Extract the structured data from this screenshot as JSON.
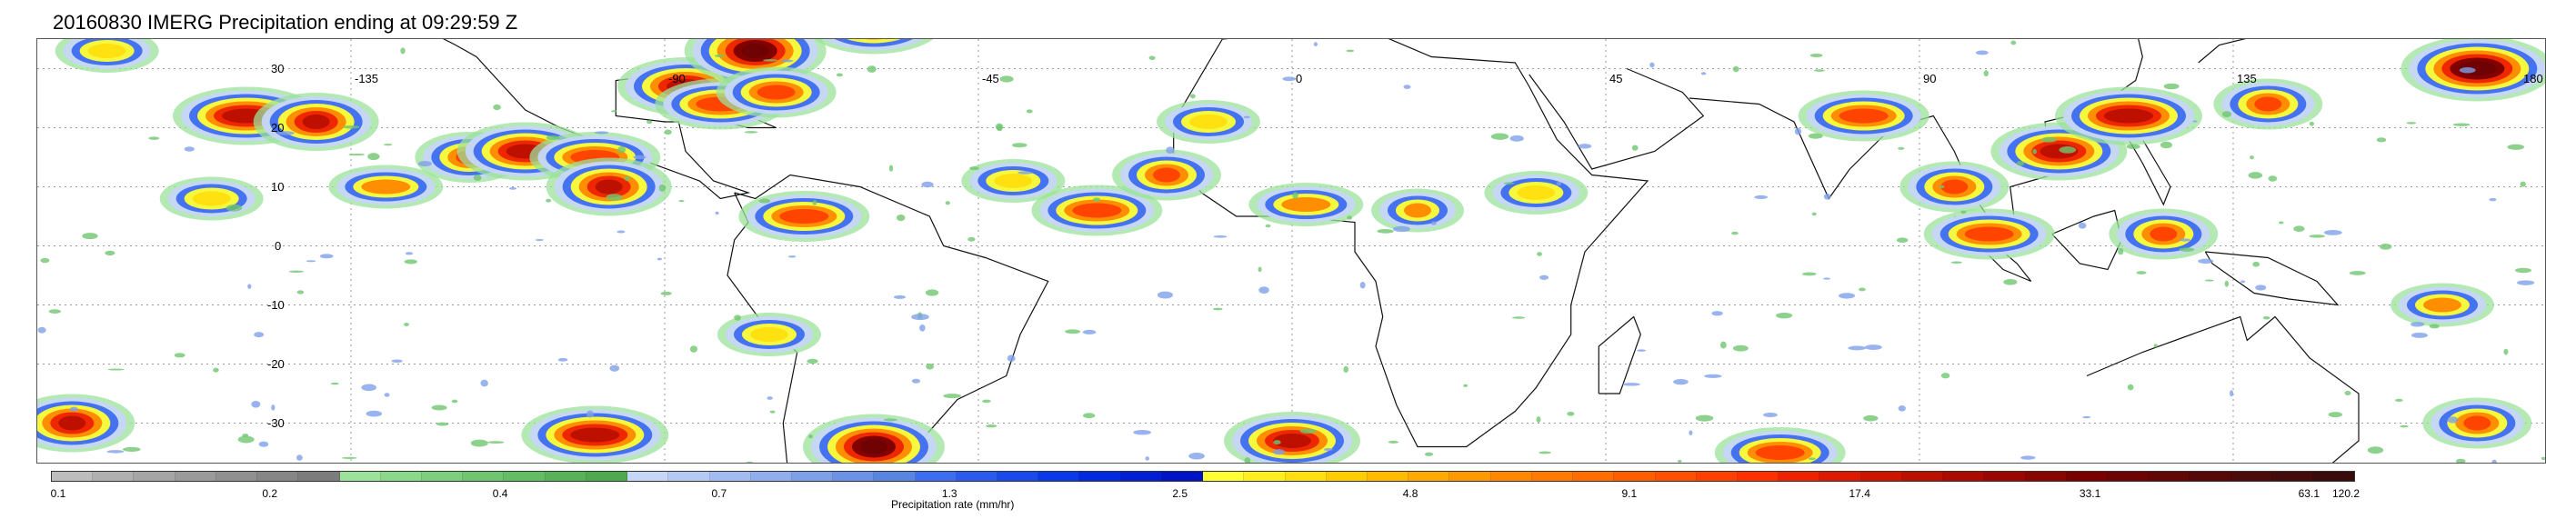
{
  "title": "20160830 IMERG Precipitation ending at 09:29:59 Z",
  "map": {
    "lat_labels": [
      "30",
      "20",
      "10",
      "0",
      "-10",
      "-20",
      "-30"
    ],
    "lat_values": [
      30,
      20,
      10,
      0,
      -10,
      -20,
      -30
    ],
    "lon_labels": [
      "-135",
      "-90",
      "-45",
      "0",
      "45",
      "90",
      "135",
      "180"
    ],
    "lon_values": [
      -135,
      -90,
      -45,
      0,
      45,
      90,
      135,
      180
    ],
    "lon_range": [
      -180,
      180
    ],
    "lat_range": [
      -37,
      35
    ],
    "gridlines": true,
    "grid_style": "dotted",
    "coastlines": true
  },
  "colorbar": {
    "title": "Precipitation rate (mm/hr)",
    "tick_labels": [
      "0.1",
      "0.2",
      "0.4",
      "0.7",
      "1.3",
      "2.5",
      "4.8",
      "9.1",
      "17.4",
      "33.1",
      "63.1",
      "120.2"
    ],
    "tick_fractions": [
      0.0,
      0.095,
      0.195,
      0.29,
      0.39,
      0.49,
      0.59,
      0.685,
      0.785,
      0.885,
      0.98,
      1.0
    ],
    "colors": [
      "#bdbdbd",
      "#b0b0b0",
      "#a5a5a5",
      "#9a9a9a",
      "#909090",
      "#868686",
      "#7c7c7c",
      "#9be29b",
      "#8ad88a",
      "#7ccf7c",
      "#6fc66f",
      "#63bd63",
      "#58b358",
      "#4fa94f",
      "#c6d6f7",
      "#b4c9f4",
      "#a2bcf1",
      "#90aeee",
      "#7ea0ea",
      "#6b92e6",
      "#5884e2",
      "#3d6df0",
      "#2b5bee",
      "#1a4aec",
      "#0a39e9",
      "#0029e0",
      "#001ed3",
      "#0014c5",
      "#ffff33",
      "#ffef1f",
      "#ffdf10",
      "#ffcc00",
      "#ffbb00",
      "#ffaa00",
      "#ff9900",
      "#ff8800",
      "#ff7a00",
      "#ff6c00",
      "#ff5e00",
      "#ff4f00",
      "#ff4000",
      "#ff3000",
      "#ee2200",
      "#dd1a00",
      "#cc1400",
      "#bb0f00",
      "#aa0a00",
      "#990700",
      "#880500",
      "#7a0000",
      "#6e0303",
      "#620606",
      "#570808",
      "#4c0a0a",
      "#430b0b",
      "#3a0b0b"
    ]
  },
  "precip_clusters": [
    {
      "lon": -175,
      "lat": -30,
      "rate": 33.1
    },
    {
      "lon": -170,
      "lat": 33,
      "rate": 4.8
    },
    {
      "lon": -150,
      "lat": 22,
      "rate": 33.1
    },
    {
      "lon": -140,
      "lat": 21,
      "rate": 33.1
    },
    {
      "lon": -155,
      "lat": 8,
      "rate": 4.8
    },
    {
      "lon": -130,
      "lat": 10,
      "rate": 9.1
    },
    {
      "lon": -118,
      "lat": 15,
      "rate": 17.4
    },
    {
      "lon": -110,
      "lat": 16,
      "rate": 33.1
    },
    {
      "lon": -100,
      "lat": 15,
      "rate": 17.4
    },
    {
      "lon": -98,
      "lat": 10,
      "rate": 33.1
    },
    {
      "lon": -87,
      "lat": 27,
      "rate": 33.1
    },
    {
      "lon": -82,
      "lat": 24,
      "rate": 17.4
    },
    {
      "lon": -77,
      "lat": 33,
      "rate": 63.1
    },
    {
      "lon": -74,
      "lat": 26,
      "rate": 17.4
    },
    {
      "lon": -70,
      "lat": 5,
      "rate": 17.4
    },
    {
      "lon": -60,
      "lat": 38,
      "rate": 63.1
    },
    {
      "lon": -40,
      "lat": 11,
      "rate": 4.8
    },
    {
      "lon": -28,
      "lat": 6,
      "rate": 17.4
    },
    {
      "lon": -18,
      "lat": 12,
      "rate": 17.4
    },
    {
      "lon": -12,
      "lat": 21,
      "rate": 4.8
    },
    {
      "lon": 2,
      "lat": 7,
      "rate": 9.1
    },
    {
      "lon": 18,
      "lat": 6,
      "rate": 9.1
    },
    {
      "lon": 35,
      "lat": 9,
      "rate": 4.8
    },
    {
      "lon": 82,
      "lat": 22,
      "rate": 17.4
    },
    {
      "lon": 95,
      "lat": 10,
      "rate": 17.4
    },
    {
      "lon": 110,
      "lat": 16,
      "rate": 33.1
    },
    {
      "lon": 120,
      "lat": 22,
      "rate": 33.1
    },
    {
      "lon": 140,
      "lat": 24,
      "rate": 17.4
    },
    {
      "lon": 170,
      "lat": 30,
      "rate": 63.1
    },
    {
      "lon": 100,
      "lat": 2,
      "rate": 17.4
    },
    {
      "lon": 125,
      "lat": 2,
      "rate": 17.4
    },
    {
      "lon": 165,
      "lat": -10,
      "rate": 9.1
    },
    {
      "lon": -100,
      "lat": -32,
      "rate": 33.1
    },
    {
      "lon": -60,
      "lat": -34,
      "rate": 63.1
    },
    {
      "lon": 0,
      "lat": -33,
      "rate": 33.1
    },
    {
      "lon": 70,
      "lat": -35,
      "rate": 17.4
    },
    {
      "lon": 170,
      "lat": -30,
      "rate": 17.4
    },
    {
      "lon": -75,
      "lat": -15,
      "rate": 4.8
    }
  ]
}
